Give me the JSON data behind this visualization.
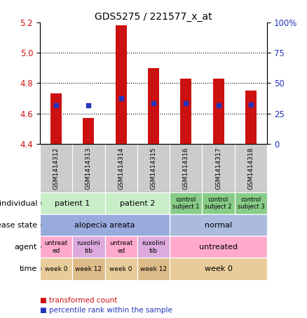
{
  "title": "GDS5275 / 221577_x_at",
  "samples": [
    "GSM1414312",
    "GSM1414313",
    "GSM1414314",
    "GSM1414315",
    "GSM1414316",
    "GSM1414317",
    "GSM1414318"
  ],
  "red_values": [
    4.73,
    4.57,
    5.18,
    4.9,
    4.83,
    4.83,
    4.75
  ],
  "blue_values": [
    4.655,
    4.653,
    4.698,
    4.668,
    4.668,
    4.655,
    4.657
  ],
  "ylim_left": [
    4.4,
    5.2
  ],
  "ylim_right": [
    0,
    100
  ],
  "yticks_left": [
    4.4,
    4.6,
    4.8,
    5.0,
    5.2
  ],
  "yticks_right": [
    0,
    25,
    50,
    75,
    100
  ],
  "ytick_labels_right": [
    "0",
    "25",
    "50",
    "75",
    "100%"
  ],
  "bar_width": 0.35,
  "bar_color": "#cc1111",
  "blue_color": "#2233bb",
  "bar_bottom": 4.4,
  "sample_bg_color": "#cccccc",
  "individual_spans": [
    [
      0,
      2,
      "patient 1"
    ],
    [
      2,
      4,
      "patient 2"
    ],
    [
      4,
      5,
      "control\nsubject 1"
    ],
    [
      5,
      6,
      "control\nsubject 2"
    ],
    [
      6,
      7,
      "control\nsubject 3"
    ]
  ],
  "disease_spans": [
    [
      0,
      4,
      "alopecia areata"
    ],
    [
      4,
      7,
      "normal"
    ]
  ],
  "agent_spans": [
    [
      0,
      1,
      "untreat\ned"
    ],
    [
      1,
      2,
      "ruxolini\ntib"
    ],
    [
      2,
      3,
      "untreat\ned"
    ],
    [
      3,
      4,
      "ruxolini\ntib"
    ],
    [
      4,
      7,
      "untreated"
    ]
  ],
  "time_spans": [
    [
      0,
      1,
      "week 0"
    ],
    [
      1,
      2,
      "week 12"
    ],
    [
      2,
      3,
      "week 0"
    ],
    [
      3,
      4,
      "week 12"
    ],
    [
      4,
      7,
      "week 0"
    ]
  ],
  "row_labels": [
    "individual",
    "disease state",
    "agent",
    "time"
  ],
  "ind_color_patient": "#c8eec8",
  "ind_color_control": "#88cc88",
  "disease_alopecia_color": "#99aadd",
  "disease_normal_color": "#aabbdd",
  "agent_untreated_color": "#ffaacc",
  "agent_ruxo_color": "#ddaadd",
  "time_color_week0": "#e8cc99",
  "time_color_week12": "#ddbb88",
  "legend_red": "transformed count",
  "legend_blue": "percentile rank within the sample"
}
